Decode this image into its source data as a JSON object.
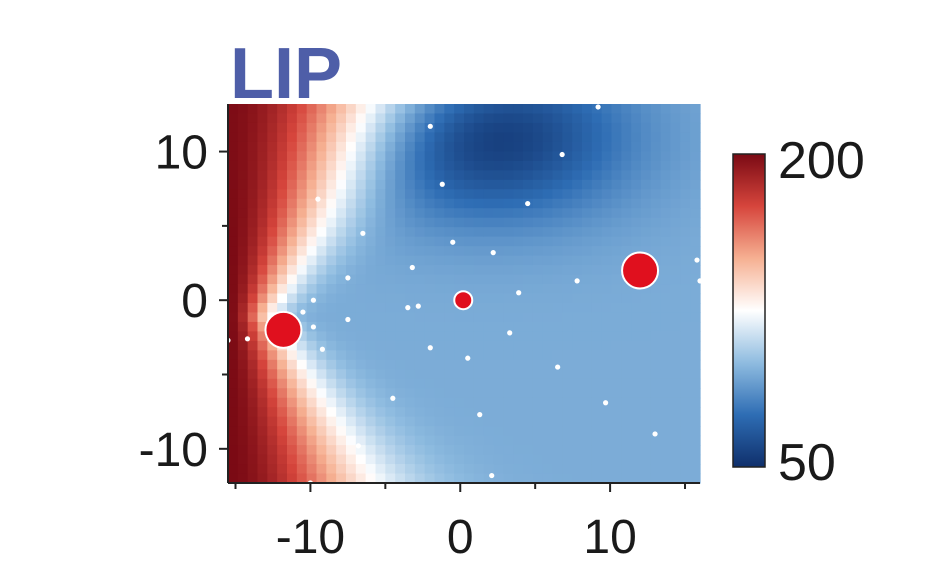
{
  "chart_data": {
    "type": "heatmap",
    "title": "LIP",
    "xlabel": "",
    "ylabel": "",
    "xlim": [
      -15.5,
      16
    ],
    "ylim": [
      -12.3,
      13.2
    ],
    "x_major_ticks": [
      -10,
      0,
      10
    ],
    "y_major_ticks": [
      -10,
      0,
      10
    ],
    "x_tick_labels": [
      "-10",
      "0",
      "10"
    ],
    "y_tick_labels": [
      "-10",
      "0",
      "10"
    ],
    "x_minor_ticks": [
      -15,
      -5,
      5,
      15
    ],
    "y_minor_ticks": [
      -5,
      5
    ],
    "colorbar": {
      "min": 50,
      "max": 200,
      "min_label": "50",
      "max_label": "200",
      "colors": [
        "#0f2f6b",
        "#2e6db4",
        "#8fbce0",
        "#ffffff",
        "#f6b092",
        "#d6453c",
        "#7a0a14"
      ]
    },
    "field_components": {
      "baseline": 95,
      "hotspot": {
        "x": -15.5,
        "y": -1,
        "amplitude": 105
      },
      "cold_region": {
        "x": 2,
        "y": 11,
        "amplitude": -40
      }
    },
    "sample_points": [
      [
        -2,
        11.7
      ],
      [
        9.2,
        13
      ],
      [
        6.8,
        9.8
      ],
      [
        -1.2,
        7.8
      ],
      [
        4.5,
        6.5
      ],
      [
        -9.5,
        6.8
      ],
      [
        -6.5,
        4.5
      ],
      [
        -0.5,
        3.9
      ],
      [
        2.2,
        3.2
      ],
      [
        -3.2,
        2.2
      ],
      [
        -7.5,
        1.5
      ],
      [
        3.9,
        0.5
      ],
      [
        7.8,
        1.3
      ],
      [
        15.8,
        2.7
      ],
      [
        16,
        1.3
      ],
      [
        -9.8,
        0
      ],
      [
        -3.5,
        -0.5
      ],
      [
        -2.8,
        -0.4
      ],
      [
        -10.5,
        -0.8
      ],
      [
        -9.8,
        -1.8
      ],
      [
        -7.5,
        -1.3
      ],
      [
        -15.5,
        -2.7
      ],
      [
        -14.2,
        -2.6
      ],
      [
        -9.2,
        -3.3
      ],
      [
        -2,
        -3.2
      ],
      [
        0.5,
        -3.9
      ],
      [
        3.3,
        -2.2
      ],
      [
        6.5,
        -4.5
      ],
      [
        -4.5,
        -6.6
      ],
      [
        1.3,
        -7.7
      ],
      [
        9.7,
        -6.9
      ],
      [
        13,
        -9
      ],
      [
        -6.8,
        -9.8
      ],
      [
        2.1,
        -11.8
      ],
      [
        -10,
        -12.3
      ]
    ],
    "highlight_points": [
      {
        "x": -11.8,
        "y": -2,
        "size": "large",
        "color": "#e0101e"
      },
      {
        "x": 12,
        "y": 2,
        "size": "large",
        "color": "#e0101e"
      },
      {
        "x": 0.2,
        "y": 0,
        "size": "small",
        "color": "#e0101e"
      }
    ]
  }
}
